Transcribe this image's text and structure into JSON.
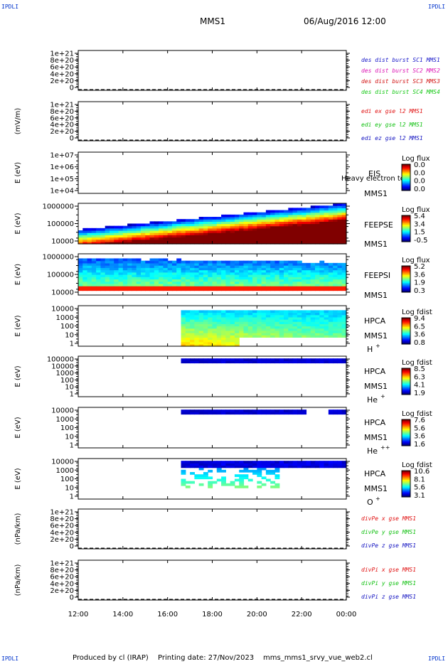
{
  "corner_text": "IPDLI",
  "header": {
    "left": "MMS1",
    "right": "06/Aug/2016 12:00"
  },
  "footer": {
    "produced": "Produced by cl (IRAP)",
    "printing": "Printing date: 27/Nov/2023",
    "script": "mms_mms1_srvy_vue_web2.cl"
  },
  "x_ticks": [
    "12:00",
    "14:00",
    "16:00",
    "18:00",
    "20:00",
    "22:00",
    "00:00"
  ],
  "colors": {
    "c1": "#1414c8",
    "c2": "#dc14b4",
    "c3": "#d21414",
    "c4": "#14c814",
    "red": "#e01010",
    "green": "#10c010",
    "blue": "#1010c0",
    "corner": "#0033cc"
  },
  "chart_data": [
    {
      "type": "line",
      "id": "p1",
      "ylabel": "",
      "yticks": [
        "1e+21",
        "8e+20",
        "6e+20",
        "4e+20",
        "2e+20",
        "0"
      ],
      "legend": [
        "des dist burst SC1 MMS1",
        "des dist burst SC2 MMS2",
        "des dist burst SC3 MMS3",
        "des dist burst SC4 MMS4"
      ],
      "series": []
    },
    {
      "type": "line",
      "id": "p2",
      "ylabel": "(mV/m)",
      "yticks": [
        "1e+21",
        "8e+20",
        "6e+20",
        "4e+20",
        "2e+20",
        "0"
      ],
      "legend": [
        "edi ex gse l2 MMS1",
        "edi ey gse l2 MMS1",
        "edi ez gse l2 MMS1"
      ],
      "series": []
    },
    {
      "type": "heatmap",
      "id": "p3",
      "ylabel": "E (eV)",
      "yticks": [
        "1e+07",
        "1e+06",
        "1e+05",
        "1e+04"
      ],
      "side": [
        "EIS",
        "MMS1"
      ],
      "overlay": "Heavy electron to",
      "cbar_title": "Log flux",
      "cbar_values": [
        "0.0",
        "0.0",
        "0.0",
        "0.0"
      ]
    },
    {
      "type": "heatmap",
      "id": "p4",
      "ylabel": "E (eV)",
      "yticks": [
        "1000000",
        "100000",
        "10000"
      ],
      "side": [
        "FEEPSE",
        "MMS1"
      ],
      "cbar_title": "Log flux",
      "cbar_values": [
        "5.4",
        "3.4",
        "1.5",
        "-0.5"
      ]
    },
    {
      "type": "heatmap",
      "id": "p5",
      "ylabel": "E (eV)",
      "yticks": [
        "1000000",
        "100000",
        "10000"
      ],
      "side": [
        "FEEPSI",
        "MMS1"
      ],
      "cbar_title": "Log flux",
      "cbar_values": [
        "5.2",
        "3.6",
        "1.9",
        "0.3"
      ]
    },
    {
      "type": "heatmap",
      "id": "p6",
      "ylabel": "E (eV)",
      "yticks": [
        "10000",
        "1000",
        "100",
        "10",
        "1"
      ],
      "side": [
        "HPCA",
        "MMS1"
      ],
      "species": "H",
      "charge": "+",
      "cbar_title": "Log fdist",
      "cbar_values": [
        "9.4",
        "6.5",
        "3.6",
        "0.8"
      ]
    },
    {
      "type": "heatmap",
      "id": "p7",
      "ylabel": "E (eV)",
      "yticks": [
        "100000",
        "10000",
        "1000",
        "100",
        "10",
        "1"
      ],
      "side": [
        "HPCA",
        "MMS1"
      ],
      "species": "He",
      "charge": "+",
      "cbar_title": "Log fdist",
      "cbar_values": [
        "8.5",
        "6.3",
        "4.1",
        "1.9"
      ]
    },
    {
      "type": "heatmap",
      "id": "p8",
      "ylabel": "E (eV)",
      "yticks": [
        "10000",
        "1000",
        "100",
        "10",
        "1"
      ],
      "side": [
        "HPCA",
        "MMS1"
      ],
      "species": "He",
      "charge": "++",
      "cbar_title": "Log fdist",
      "cbar_values": [
        "7.6",
        "5.6",
        "3.6",
        "1.6"
      ]
    },
    {
      "type": "heatmap",
      "id": "p9",
      "ylabel": "E (eV)",
      "yticks": [
        "10000",
        "1000",
        "100",
        "10",
        "1"
      ],
      "side": [
        "HPCA",
        "MMS1"
      ],
      "species": "O",
      "charge": "+",
      "cbar_title": "Log fdist",
      "cbar_values": [
        "10.6",
        "8.1",
        "5.6",
        "3.1"
      ]
    },
    {
      "type": "line",
      "id": "p10",
      "ylabel": "(nPa/km)",
      "yticks": [
        "1e+21",
        "8e+20",
        "6e+20",
        "4e+20",
        "2e+20",
        "0"
      ],
      "legend": [
        "divPe x gse MMS1",
        "divPe y gse MMS1",
        "divPe z gse MMS1"
      ],
      "series": []
    },
    {
      "type": "line",
      "id": "p11",
      "ylabel": "(nPa/km)",
      "yticks": [
        "1e+21",
        "8e+20",
        "6e+20",
        "4e+20",
        "2e+20",
        "0"
      ],
      "legend": [
        "divPi x gse MMS1",
        "divPi y gse MMS1",
        "divPi z gse MMS1"
      ],
      "series": []
    }
  ]
}
